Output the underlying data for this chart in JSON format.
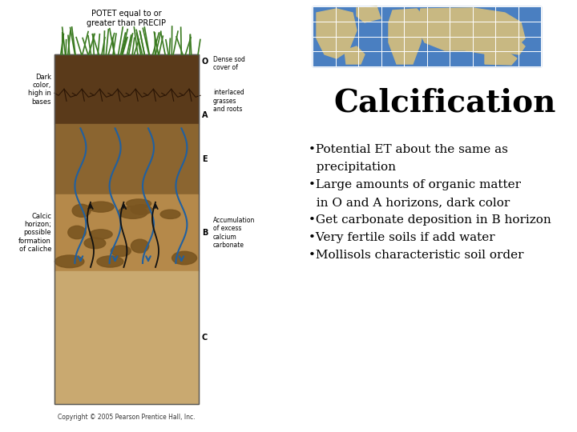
{
  "title": "Calcification",
  "title_fontsize": 28,
  "title_color": "#000000",
  "title_weight": "bold",
  "title_family": "serif",
  "bg_color": "#ffffff",
  "bullet_lines": [
    "•Potential ET about the same as",
    "  precipitation",
    "•Large amounts of organic matter",
    "  in O and A horizons, dark color",
    "•Get carbonate deposition in B horizon",
    "•Very fertile soils if add water",
    "•Mollisols characteristic soil order"
  ],
  "bullet_fontsize": 11,
  "bullet_color": "#000000",
  "bullet_family": "serif",
  "copyright": "Copyright © 2005 Pearson Prentice Hall, Inc.",
  "map_ocean_color": "#4a7fc1",
  "map_land_color": "#c8b882",
  "soil_dark_color": "#5a3a1a",
  "soil_e_color": "#8b6530",
  "soil_b_color": "#b5894a",
  "soil_c_color": "#c9a970",
  "grass_color": "#3a7a20",
  "arrow_color": "#2060a0",
  "nodule_color": "#7a5520",
  "label_fontsize": 7,
  "horizon_fontsize": 7
}
